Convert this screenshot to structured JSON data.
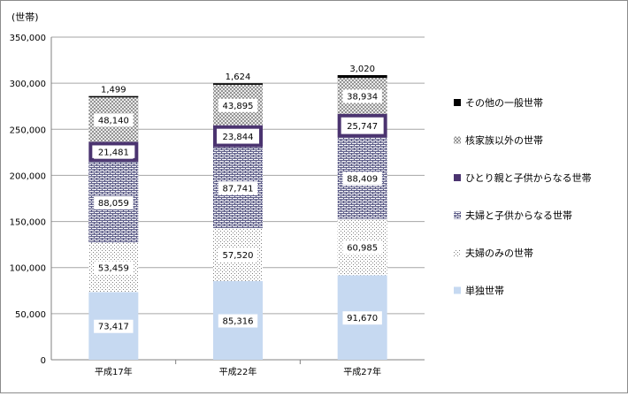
{
  "chart_data": {
    "type": "bar",
    "stacked": true,
    "ylabel": "(世帯)",
    "ylim": [
      0,
      350000
    ],
    "yticks": [
      0,
      50000,
      100000,
      150000,
      200000,
      250000,
      300000,
      350000
    ],
    "ytick_labels": [
      "0",
      "50,000",
      "100,000",
      "150,000",
      "200,000",
      "250,000",
      "300,000",
      "350,000"
    ],
    "categories": [
      "平成17年",
      "平成22年",
      "平成27年"
    ],
    "grid": true,
    "legend_position": "right",
    "series": [
      {
        "name": "単独世帯",
        "values": [
          73417,
          85316,
          91670
        ],
        "labels": [
          "73,417",
          "85,316",
          "91,670"
        ],
        "color": "#c6d9f1",
        "pattern": "solid"
      },
      {
        "name": "夫婦のみの世帯",
        "values": [
          53459,
          57520,
          60985
        ],
        "labels": [
          "53,459",
          "57,520",
          "60,985"
        ],
        "color": "#7f7f7f",
        "pattern": "dots"
      },
      {
        "name": "夫婦と子供からなる世帯",
        "values": [
          88059,
          87741,
          88409
        ],
        "labels": [
          "88,059",
          "87,741",
          "88,409"
        ],
        "color": "#5a5a86",
        "pattern": "bricks"
      },
      {
        "name": "ひとり親と子供からなる世帯",
        "values": [
          21481,
          23844,
          25747
        ],
        "labels": [
          "21,481",
          "23,844",
          "25,747"
        ],
        "color": "#4b3470",
        "pattern": "solid-outline"
      },
      {
        "name": "核家族以外の世帯",
        "values": [
          48140,
          43895,
          38934
        ],
        "labels": [
          "48,140",
          "43,895",
          "38,934"
        ],
        "color": "#7f7f7f",
        "pattern": "cross"
      },
      {
        "name": "その他の一般世帯",
        "values": [
          1499,
          1624,
          3020
        ],
        "labels": [
          "1,499",
          "1,624",
          "3,020"
        ],
        "color": "#000000",
        "pattern": "solid"
      }
    ]
  }
}
